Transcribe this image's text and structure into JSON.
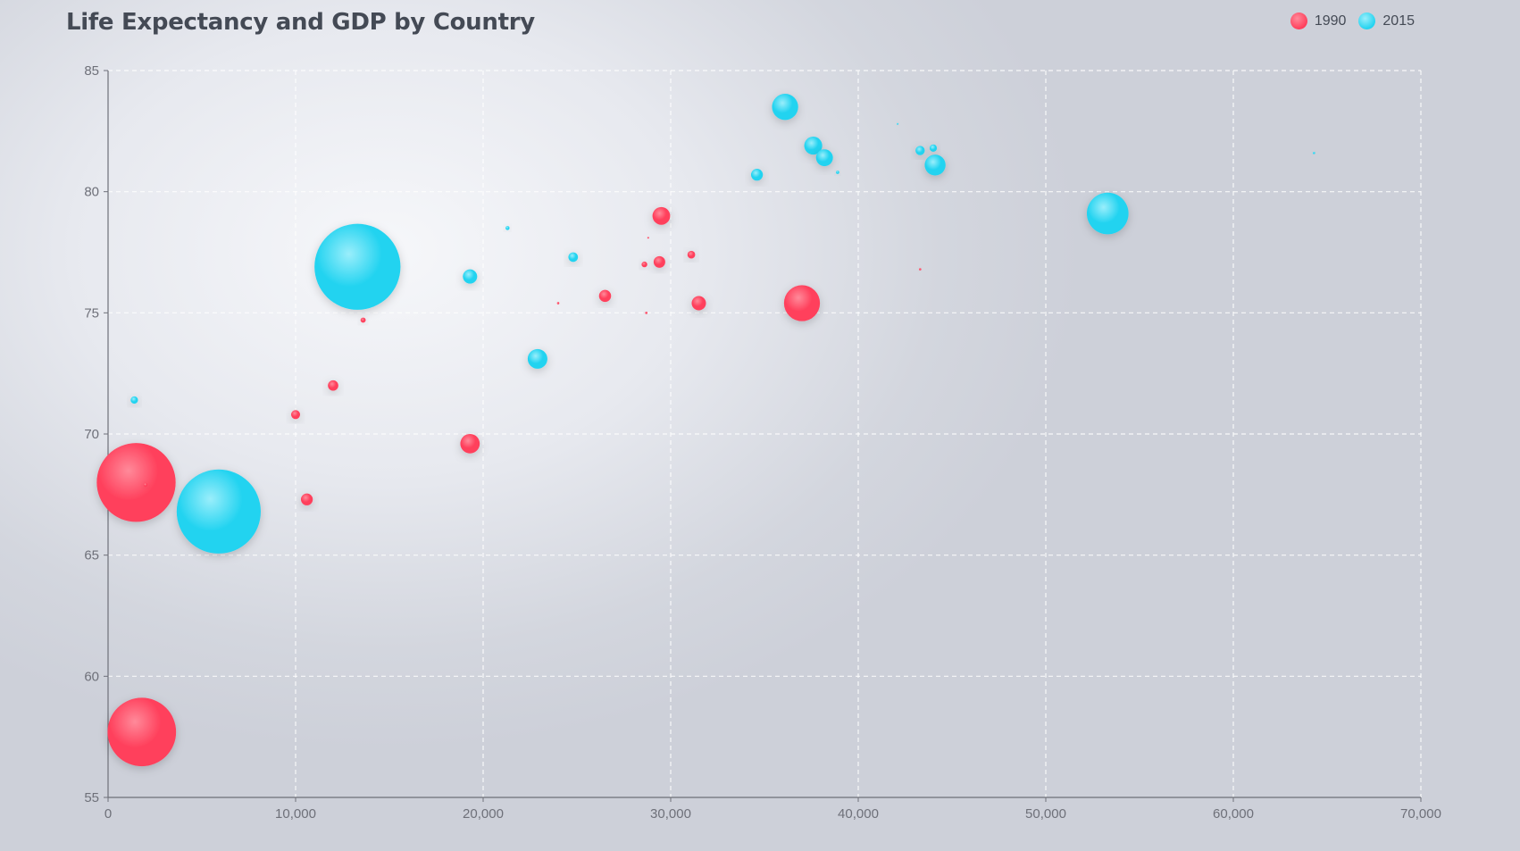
{
  "colors": {
    "s1990": "#ff3f5b",
    "s1990_light": "#ff8a9a",
    "s2015": "#22d3f0",
    "s2015_light": "#9aeefb",
    "axis": "#6e7079",
    "grid": "#ffffff"
  },
  "chart_data": {
    "type": "scatter",
    "title": "Life Expectancy and GDP by Country",
    "xlabel": "",
    "ylabel": "",
    "xlim": [
      0,
      70000
    ],
    "ylim": [
      55,
      85
    ],
    "grid": true,
    "legend_position": "top-right",
    "x_ticks": [
      "0",
      "10,000",
      "20,000",
      "30,000",
      "40,000",
      "50,000",
      "60,000",
      "70,000"
    ],
    "y_ticks": [
      "55",
      "60",
      "65",
      "70",
      "75",
      "80",
      "85"
    ],
    "size_note": "bubble area encodes population",
    "series": [
      {
        "name": "1990",
        "points": [
          {
            "x": 1500,
            "y": 68.0,
            "size": 1154
          },
          {
            "x": 1800,
            "y": 57.7,
            "size": 870
          },
          {
            "x": 2000,
            "y": 67.9,
            "size": 3
          },
          {
            "x": 10000,
            "y": 70.8,
            "size": 15
          },
          {
            "x": 10600,
            "y": 67.3,
            "size": 26
          },
          {
            "x": 12000,
            "y": 72.0,
            "size": 20
          },
          {
            "x": 13600,
            "y": 74.7,
            "size": 5
          },
          {
            "x": 19300,
            "y": 69.6,
            "size": 70
          },
          {
            "x": 24000,
            "y": 75.4,
            "size": 1
          },
          {
            "x": 26500,
            "y": 75.7,
            "size": 27
          },
          {
            "x": 28600,
            "y": 77.0,
            "size": 6
          },
          {
            "x": 28700,
            "y": 75.0,
            "size": 1
          },
          {
            "x": 28800,
            "y": 78.1,
            "size": 0.2
          },
          {
            "x": 29400,
            "y": 77.1,
            "size": 25
          },
          {
            "x": 29500,
            "y": 79.0,
            "size": 58
          },
          {
            "x": 31100,
            "y": 77.4,
            "size": 11
          },
          {
            "x": 31500,
            "y": 75.4,
            "size": 38
          },
          {
            "x": 37000,
            "y": 75.4,
            "size": 240
          },
          {
            "x": 43300,
            "y": 76.8,
            "size": 1
          }
        ]
      },
      {
        "name": "2015",
        "points": [
          {
            "x": 1400,
            "y": 71.4,
            "size": 10
          },
          {
            "x": 5900,
            "y": 66.8,
            "size": 1311
          },
          {
            "x": 13300,
            "y": 76.9,
            "size": 1371
          },
          {
            "x": 19300,
            "y": 76.5,
            "size": 38
          },
          {
            "x": 21300,
            "y": 78.5,
            "size": 3
          },
          {
            "x": 22900,
            "y": 73.1,
            "size": 72
          },
          {
            "x": 24800,
            "y": 77.3,
            "size": 17
          },
          {
            "x": 34600,
            "y": 80.7,
            "size": 26
          },
          {
            "x": 36100,
            "y": 83.5,
            "size": 127
          },
          {
            "x": 37600,
            "y": 81.9,
            "size": 60
          },
          {
            "x": 38200,
            "y": 81.4,
            "size": 53
          },
          {
            "x": 38900,
            "y": 80.8,
            "size": 2
          },
          {
            "x": 42100,
            "y": 82.8,
            "size": 0.2
          },
          {
            "x": 43300,
            "y": 81.7,
            "size": 16
          },
          {
            "x": 44000,
            "y": 81.8,
            "size": 10
          },
          {
            "x": 44100,
            "y": 81.1,
            "size": 81
          },
          {
            "x": 53300,
            "y": 79.1,
            "size": 322
          },
          {
            "x": 64300,
            "y": 81.6,
            "size": 1
          }
        ]
      }
    ]
  }
}
